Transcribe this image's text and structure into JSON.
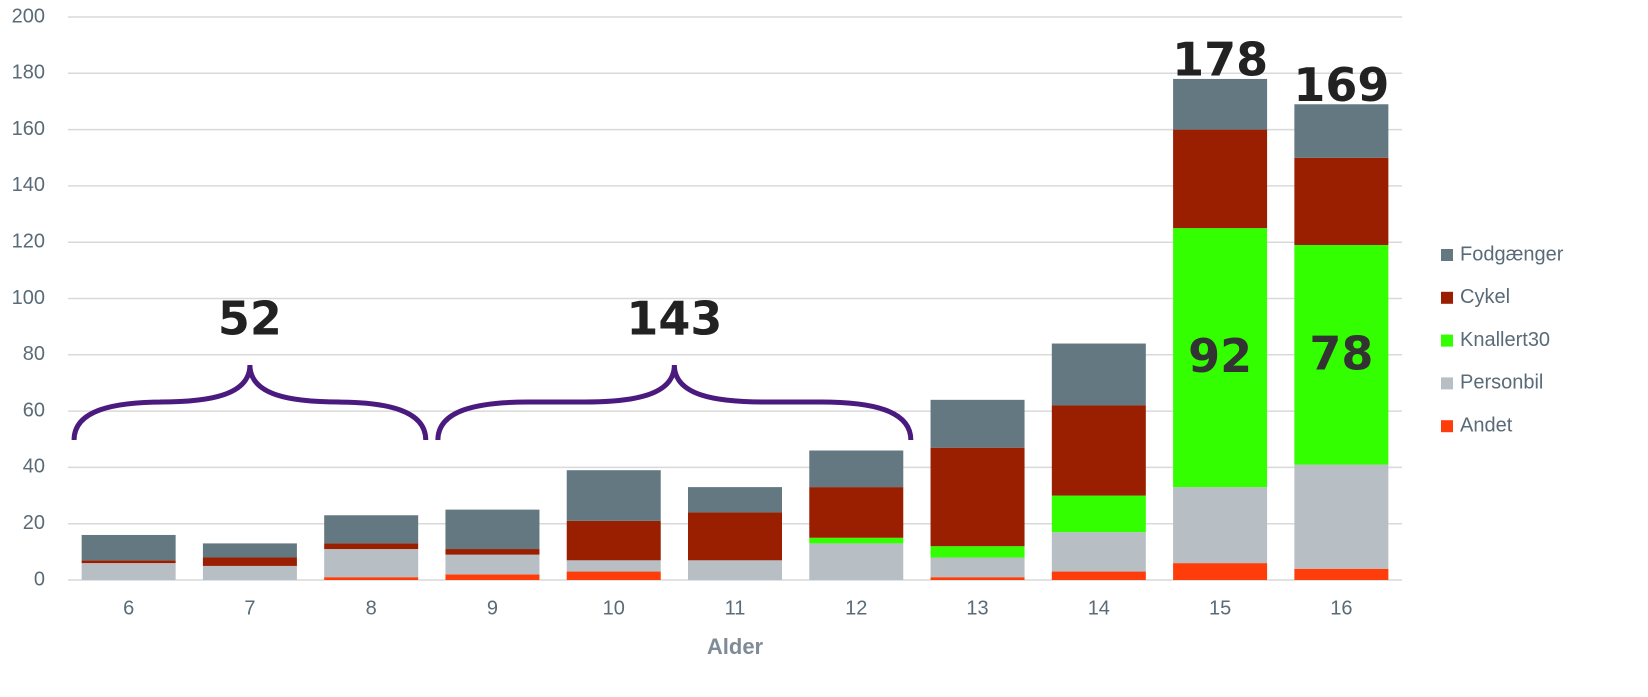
{
  "chart_data": {
    "type": "stacked-bar",
    "x_label": "Alder",
    "categories": [
      "6",
      "7",
      "8",
      "9",
      "10",
      "11",
      "12",
      "13",
      "14",
      "15",
      "16"
    ],
    "series": [
      {
        "name": "Andet",
        "color": "#ff3d0a",
        "values": [
          0,
          0,
          1,
          2,
          3,
          0,
          0,
          1,
          3,
          6,
          4
        ]
      },
      {
        "name": "Personbil",
        "color": "#b7bfc4",
        "values": [
          6,
          5,
          10,
          7,
          4,
          7,
          13,
          7,
          14,
          27,
          37
        ]
      },
      {
        "name": "Knallert30",
        "color": "#33ff00",
        "values": [
          0,
          0,
          0,
          0,
          0,
          0,
          2,
          4,
          13,
          92,
          78
        ]
      },
      {
        "name": "Cykel",
        "color": "#9a1f00",
        "values": [
          1,
          3,
          2,
          2,
          14,
          17,
          18,
          35,
          32,
          35,
          31
        ]
      },
      {
        "name": "Fodgænger",
        "color": "#647881",
        "values": [
          9,
          5,
          10,
          14,
          18,
          9,
          13,
          17,
          22,
          18,
          19
        ]
      }
    ],
    "ylim": [
      0,
      200
    ],
    "yticks": [
      0,
      20,
      40,
      60,
      80,
      100,
      120,
      140,
      160,
      180,
      200
    ],
    "grid": true,
    "legend": "right",
    "annotations": [
      {
        "text": "52",
        "from": "6",
        "to": "8"
      },
      {
        "text": "143",
        "from": "9",
        "to": "12"
      },
      {
        "text": "178",
        "at": "15"
      },
      {
        "text": "169",
        "at": "16"
      },
      {
        "text": "92",
        "at": "15",
        "series": "Knallert30"
      },
      {
        "text": "78",
        "at": "16",
        "series": "Knallert30"
      }
    ]
  }
}
